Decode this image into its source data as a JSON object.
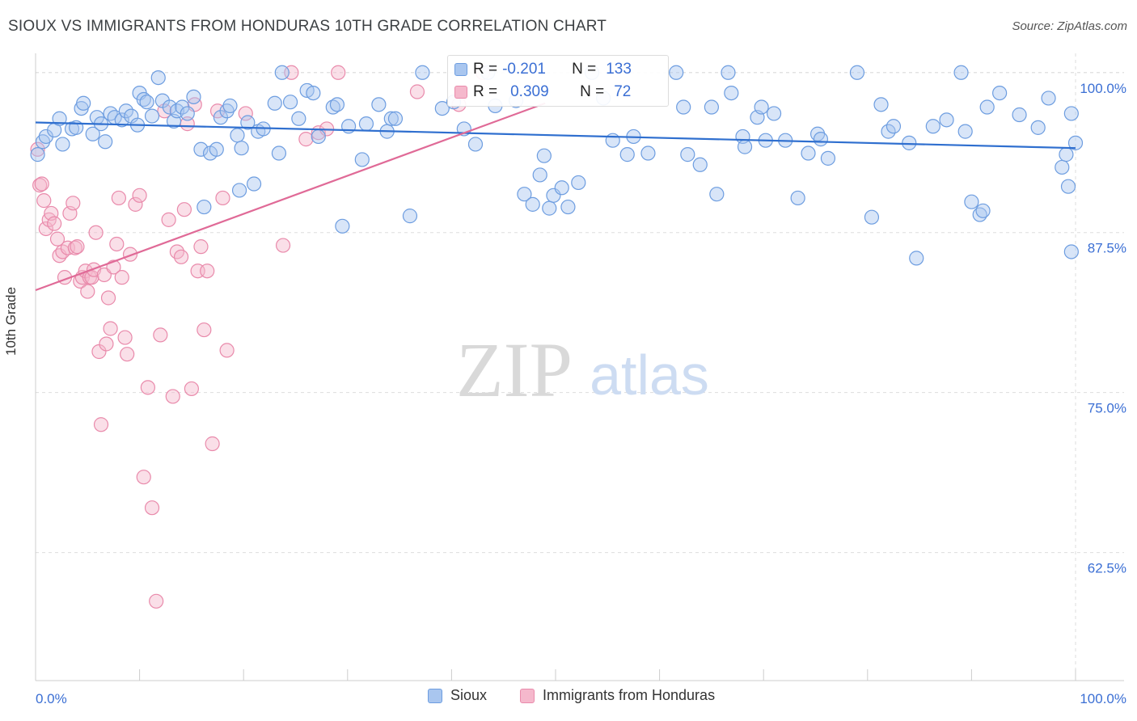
{
  "title": "SIOUX VS IMMIGRANTS FROM HONDURAS 10TH GRADE CORRELATION CHART",
  "source": "Source: ZipAtlas.com",
  "watermark": {
    "zip": "ZIP",
    "atlas": "atlas"
  },
  "colors": {
    "blue_fill": "#a9c6ef",
    "blue_stroke": "#6d9de0",
    "blue_line": "#2f6fcf",
    "pink_fill": "#f5b8cc",
    "pink_stroke": "#e98aab",
    "pink_line": "#e06a97",
    "tick_label": "#3b6fd4",
    "grid": "#dddddd"
  },
  "stats": [
    {
      "r_label": "R =",
      "r_value": "-0.201",
      "n_label": "N =",
      "n_value": "133",
      "series": "blue"
    },
    {
      "r_label": "R =",
      "r_value": "0.309",
      "n_label": "N =",
      "n_value": "72",
      "series": "pink"
    }
  ],
  "legend": [
    {
      "name": "Sioux",
      "series": "blue"
    },
    {
      "name": "Immigrants from Honduras",
      "series": "pink"
    }
  ],
  "chart_data": {
    "type": "scatter",
    "title": "SIOUX VS IMMIGRANTS FROM HONDURAS 10TH GRADE CORRELATION CHART",
    "xlabel": "",
    "ylabel": "10th Grade",
    "xlim": [
      0,
      100
    ],
    "ylim": [
      52.5,
      101.5
    ],
    "x_tick_labels": [
      "0.0%",
      "100.0%"
    ],
    "y_ticks": [
      62.5,
      75.0,
      87.5,
      100.0
    ],
    "y_tick_labels": [
      "62.5%",
      "75.0%",
      "87.5%",
      "100.0%"
    ],
    "grid": true,
    "legend_position": "bottom",
    "series": [
      {
        "name": "Sioux",
        "color": "blue",
        "trend": {
          "x": [
            0,
            100
          ],
          "y": [
            96.1,
            94.1
          ]
        },
        "points": [
          [
            0.2,
            93.6
          ],
          [
            0.7,
            94.6
          ],
          [
            1.0,
            95.0
          ],
          [
            1.8,
            95.5
          ],
          [
            2.3,
            96.4
          ],
          [
            2.6,
            94.4
          ],
          [
            3.5,
            95.6
          ],
          [
            3.9,
            95.7
          ],
          [
            4.4,
            97.2
          ],
          [
            4.6,
            97.6
          ],
          [
            5.5,
            95.2
          ],
          [
            5.9,
            96.5
          ],
          [
            6.3,
            96.0
          ],
          [
            6.7,
            94.6
          ],
          [
            7.2,
            96.8
          ],
          [
            7.6,
            96.5
          ],
          [
            8.3,
            96.3
          ],
          [
            8.7,
            97.0
          ],
          [
            9.2,
            96.6
          ],
          [
            9.8,
            95.9
          ],
          [
            10.0,
            98.4
          ],
          [
            10.4,
            97.9
          ],
          [
            10.7,
            97.7
          ],
          [
            11.2,
            96.6
          ],
          [
            11.8,
            99.6
          ],
          [
            12.2,
            97.8
          ],
          [
            12.9,
            97.3
          ],
          [
            13.3,
            96.2
          ],
          [
            13.6,
            97.0
          ],
          [
            14.1,
            97.3
          ],
          [
            14.6,
            96.8
          ],
          [
            15.2,
            98.1
          ],
          [
            15.9,
            94.0
          ],
          [
            16.2,
            89.5
          ],
          [
            16.8,
            93.7
          ],
          [
            17.4,
            94.0
          ],
          [
            17.8,
            96.5
          ],
          [
            18.4,
            97.0
          ],
          [
            18.7,
            97.4
          ],
          [
            19.4,
            95.1
          ],
          [
            19.6,
            90.8
          ],
          [
            19.8,
            94.1
          ],
          [
            20.4,
            96.1
          ],
          [
            21.0,
            91.3
          ],
          [
            21.4,
            95.4
          ],
          [
            21.9,
            95.6
          ],
          [
            23.0,
            97.6
          ],
          [
            23.4,
            93.7
          ],
          [
            23.7,
            100.0
          ],
          [
            24.5,
            97.7
          ],
          [
            25.3,
            96.4
          ],
          [
            26.1,
            98.6
          ],
          [
            26.7,
            98.4
          ],
          [
            27.2,
            95.0
          ],
          [
            28.6,
            97.3
          ],
          [
            29.0,
            97.5
          ],
          [
            29.5,
            88.0
          ],
          [
            30.1,
            95.8
          ],
          [
            31.4,
            93.2
          ],
          [
            31.8,
            96.0
          ],
          [
            33.0,
            97.5
          ],
          [
            33.8,
            95.4
          ],
          [
            34.2,
            96.4
          ],
          [
            34.6,
            96.4
          ],
          [
            36.0,
            88.8
          ],
          [
            37.2,
            100.0
          ],
          [
            39.1,
            97.2
          ],
          [
            40.2,
            97.7
          ],
          [
            41.2,
            95.6
          ],
          [
            42.3,
            94.4
          ],
          [
            43.5,
            100.0
          ],
          [
            44.2,
            97.4
          ],
          [
            46.2,
            97.8
          ],
          [
            47.0,
            90.5
          ],
          [
            47.8,
            89.7
          ],
          [
            48.5,
            92.0
          ],
          [
            48.9,
            93.5
          ],
          [
            49.4,
            89.4
          ],
          [
            49.8,
            90.4
          ],
          [
            50.6,
            91.0
          ],
          [
            51.2,
            89.5
          ],
          [
            52.2,
            91.4
          ],
          [
            53.5,
            100.0
          ],
          [
            54.6,
            98.0
          ],
          [
            55.5,
            94.7
          ],
          [
            56.9,
            93.6
          ],
          [
            57.5,
            95.0
          ],
          [
            58.9,
            93.7
          ],
          [
            61.6,
            100.0
          ],
          [
            62.3,
            97.3
          ],
          [
            62.7,
            93.6
          ],
          [
            63.9,
            92.8
          ],
          [
            65.0,
            97.3
          ],
          [
            65.5,
            90.5
          ],
          [
            66.6,
            100.0
          ],
          [
            66.9,
            98.4
          ],
          [
            68.0,
            95.0
          ],
          [
            68.2,
            94.2
          ],
          [
            69.4,
            96.5
          ],
          [
            69.8,
            97.3
          ],
          [
            70.2,
            94.7
          ],
          [
            71.0,
            96.8
          ],
          [
            72.1,
            94.7
          ],
          [
            73.3,
            90.2
          ],
          [
            74.3,
            93.7
          ],
          [
            75.2,
            95.2
          ],
          [
            75.5,
            94.8
          ],
          [
            76.2,
            93.3
          ],
          [
            79.0,
            100.0
          ],
          [
            80.4,
            88.7
          ],
          [
            81.3,
            97.5
          ],
          [
            82.0,
            95.4
          ],
          [
            82.5,
            95.8
          ],
          [
            84.0,
            94.5
          ],
          [
            84.7,
            85.5
          ],
          [
            86.3,
            95.8
          ],
          [
            87.6,
            96.3
          ],
          [
            89.0,
            100.0
          ],
          [
            89.4,
            95.4
          ],
          [
            90.0,
            89.9
          ],
          [
            90.8,
            88.9
          ],
          [
            91.1,
            89.2
          ],
          [
            91.5,
            97.3
          ],
          [
            92.7,
            98.4
          ],
          [
            94.6,
            96.7
          ],
          [
            96.4,
            95.7
          ],
          [
            97.4,
            98.0
          ],
          [
            98.7,
            92.6
          ],
          [
            99.1,
            93.6
          ],
          [
            99.3,
            91.1
          ],
          [
            99.6,
            96.8
          ],
          [
            99.6,
            86.0
          ],
          [
            100.0,
            94.5
          ]
        ]
      },
      {
        "name": "Immigrants from Honduras",
        "color": "pink",
        "trend": {
          "x": [
            0,
            49
          ],
          "y": [
            83.0,
            97.6
          ]
        },
        "points": [
          [
            0.2,
            94.0
          ],
          [
            0.4,
            91.2
          ],
          [
            0.6,
            91.3
          ],
          [
            0.8,
            90.0
          ],
          [
            1.0,
            87.8
          ],
          [
            1.3,
            88.5
          ],
          [
            1.5,
            89.0
          ],
          [
            1.8,
            88.2
          ],
          [
            2.1,
            87.0
          ],
          [
            2.3,
            85.7
          ],
          [
            2.6,
            86.0
          ],
          [
            2.8,
            84.0
          ],
          [
            3.1,
            86.3
          ],
          [
            3.3,
            89.0
          ],
          [
            3.6,
            89.8
          ],
          [
            3.8,
            86.3
          ],
          [
            4.0,
            86.4
          ],
          [
            4.3,
            83.7
          ],
          [
            4.5,
            84.0
          ],
          [
            4.8,
            84.5
          ],
          [
            5.0,
            82.9
          ],
          [
            5.2,
            84.0
          ],
          [
            5.4,
            84.0
          ],
          [
            5.6,
            84.6
          ],
          [
            5.8,
            87.5
          ],
          [
            6.1,
            78.2
          ],
          [
            6.3,
            72.5
          ],
          [
            6.6,
            84.2
          ],
          [
            6.8,
            78.8
          ],
          [
            7.0,
            82.4
          ],
          [
            7.2,
            80.0
          ],
          [
            7.5,
            84.8
          ],
          [
            7.8,
            86.6
          ],
          [
            8.0,
            90.2
          ],
          [
            8.3,
            84.0
          ],
          [
            8.6,
            79.3
          ],
          [
            8.8,
            78.0
          ],
          [
            9.1,
            85.8
          ],
          [
            9.6,
            89.7
          ],
          [
            10.0,
            90.4
          ],
          [
            10.4,
            68.4
          ],
          [
            10.8,
            75.4
          ],
          [
            11.2,
            66.0
          ],
          [
            11.6,
            58.7
          ],
          [
            12.0,
            79.5
          ],
          [
            12.4,
            97.0
          ],
          [
            12.8,
            88.5
          ],
          [
            13.2,
            74.7
          ],
          [
            13.6,
            86.0
          ],
          [
            14.0,
            85.6
          ],
          [
            14.3,
            89.3
          ],
          [
            14.6,
            96.0
          ],
          [
            15.0,
            75.3
          ],
          [
            15.3,
            97.5
          ],
          [
            15.6,
            84.5
          ],
          [
            15.9,
            86.4
          ],
          [
            16.2,
            79.9
          ],
          [
            16.5,
            84.5
          ],
          [
            17.0,
            71.0
          ],
          [
            17.5,
            97.0
          ],
          [
            18.0,
            90.2
          ],
          [
            18.4,
            78.3
          ],
          [
            20.2,
            96.8
          ],
          [
            23.8,
            86.5
          ],
          [
            24.6,
            100.0
          ],
          [
            26.0,
            94.8
          ],
          [
            27.2,
            95.3
          ],
          [
            28.0,
            95.6
          ],
          [
            29.1,
            100.0
          ],
          [
            36.7,
            98.5
          ],
          [
            40.7,
            97.5
          ],
          [
            43.0,
            100.0
          ]
        ]
      }
    ]
  }
}
